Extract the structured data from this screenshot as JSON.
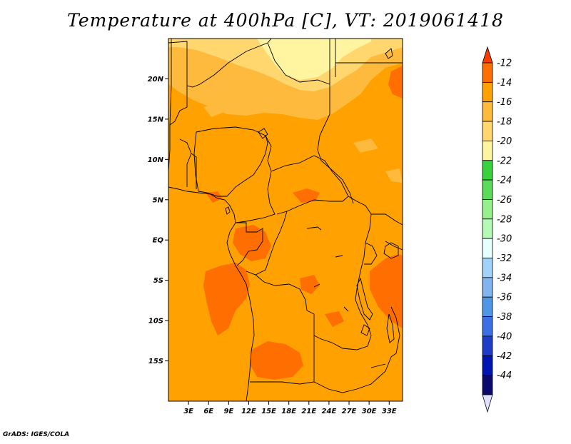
{
  "title": "Temperature at 400hPa [C], VT: 2019061418",
  "credit": "GrADS: IGES/COLA",
  "map": {
    "lon_range": [
      0,
      35
    ],
    "lat_range": [
      -20,
      25
    ],
    "lat_ticks": [
      "20N",
      "15N",
      "10N",
      "5N",
      "EQ",
      "5S",
      "10S",
      "15S"
    ],
    "lon_ticks": [
      "3E",
      "6E",
      "9E",
      "12E",
      "15E",
      "18E",
      "21E",
      "24E",
      "27E",
      "30E",
      "33E"
    ],
    "background_color": "#fea101"
  },
  "colorbar": {
    "labels": [
      "-12",
      "-14",
      "-16",
      "-18",
      "-20",
      "-22",
      "-24",
      "-26",
      "-28",
      "-30",
      "-32",
      "-34",
      "-36",
      "-38",
      "-40",
      "-42",
      "-44"
    ],
    "colors": [
      "#fa3c00",
      "#ff6e00",
      "#fea101",
      "#feba3c",
      "#ffd76e",
      "#fff5a0",
      "#37d23c",
      "#5adc5a",
      "#96f08c",
      "#b4fab4",
      "#e6ffff",
      "#a0d2fa",
      "#82b4f0",
      "#5096e6",
      "#3c6ee6",
      "#1e3cc8",
      "#0014b4",
      "#0a0a6e",
      "#e1e1ff"
    ]
  }
}
